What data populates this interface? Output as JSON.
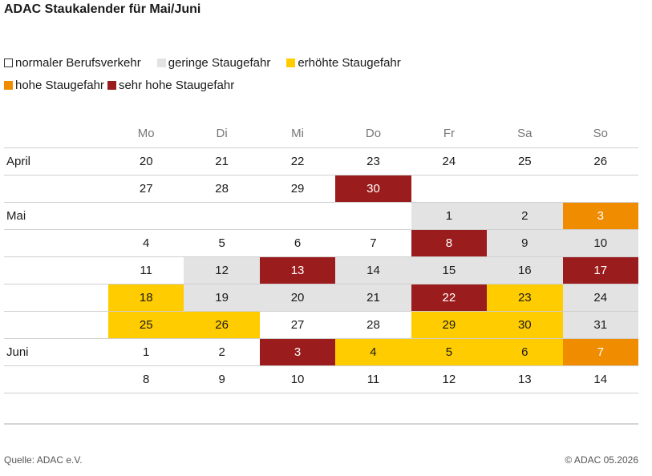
{
  "chart_data": {
    "type": "table",
    "title": "ADAC Staukalender für Mai/Juni",
    "legend": [
      {
        "label": "normaler Berufsverkehr",
        "color": "#ffffff",
        "outlined": true
      },
      {
        "label": "geringe Staugefahr",
        "color": "#e3e3e3"
      },
      {
        "label": "erhöhte Staugefahr",
        "color": "#ffcc00"
      },
      {
        "label": "hohe Staugefahr",
        "color": "#f08c00"
      },
      {
        "label": "sehr hohe Staugefahr",
        "color": "#9b1c1c"
      }
    ],
    "weekdays": [
      "Mo",
      "Di",
      "Mi",
      "Do",
      "Fr",
      "Sa",
      "So"
    ],
    "rows": [
      {
        "month": "April",
        "days": [
          [
            "20",
            0
          ],
          [
            "21",
            0
          ],
          [
            "22",
            0
          ],
          [
            "23",
            0
          ],
          [
            "24",
            0
          ],
          [
            "25",
            0
          ],
          [
            "26",
            0
          ]
        ]
      },
      {
        "month": "",
        "days": [
          [
            "27",
            0
          ],
          [
            "28",
            0
          ],
          [
            "29",
            0
          ],
          [
            "30",
            4
          ],
          null,
          null,
          null
        ]
      },
      {
        "month": "Mai",
        "days": [
          null,
          null,
          null,
          null,
          [
            "1",
            1
          ],
          [
            "2",
            1
          ],
          [
            "3",
            3
          ]
        ]
      },
      {
        "month": "",
        "days": [
          [
            "4",
            0
          ],
          [
            "5",
            0
          ],
          [
            "6",
            0
          ],
          [
            "7",
            0
          ],
          [
            "8",
            4
          ],
          [
            "9",
            1
          ],
          [
            "10",
            1
          ]
        ]
      },
      {
        "month": "",
        "days": [
          [
            "11",
            0
          ],
          [
            "12",
            1
          ],
          [
            "13",
            4
          ],
          [
            "14",
            1
          ],
          [
            "15",
            1
          ],
          [
            "16",
            1
          ],
          [
            "17",
            4
          ]
        ]
      },
      {
        "month": "",
        "days": [
          [
            "18",
            2
          ],
          [
            "19",
            1
          ],
          [
            "20",
            1
          ],
          [
            "21",
            1
          ],
          [
            "22",
            4
          ],
          [
            "23",
            2
          ],
          [
            "24",
            1
          ]
        ]
      },
      {
        "month": "",
        "days": [
          [
            "25",
            2
          ],
          [
            "26",
            2
          ],
          [
            "27",
            0
          ],
          [
            "28",
            0
          ],
          [
            "29",
            2
          ],
          [
            "30",
            2
          ],
          [
            "31",
            1
          ]
        ]
      },
      {
        "month": "Juni",
        "days": [
          [
            "1",
            0
          ],
          [
            "2",
            0
          ],
          [
            "3",
            4
          ],
          [
            "4",
            2
          ],
          [
            "5",
            2
          ],
          [
            "6",
            2
          ],
          [
            "7",
            3
          ]
        ]
      },
      {
        "month": "",
        "days": [
          [
            "8",
            0
          ],
          [
            "9",
            0
          ],
          [
            "10",
            0
          ],
          [
            "11",
            0
          ],
          [
            "12",
            0
          ],
          [
            "13",
            0
          ],
          [
            "14",
            0
          ]
        ]
      }
    ]
  },
  "footer": {
    "source": "Quelle: ADAC e.V.",
    "copyright": "© ADAC 05.2026"
  }
}
